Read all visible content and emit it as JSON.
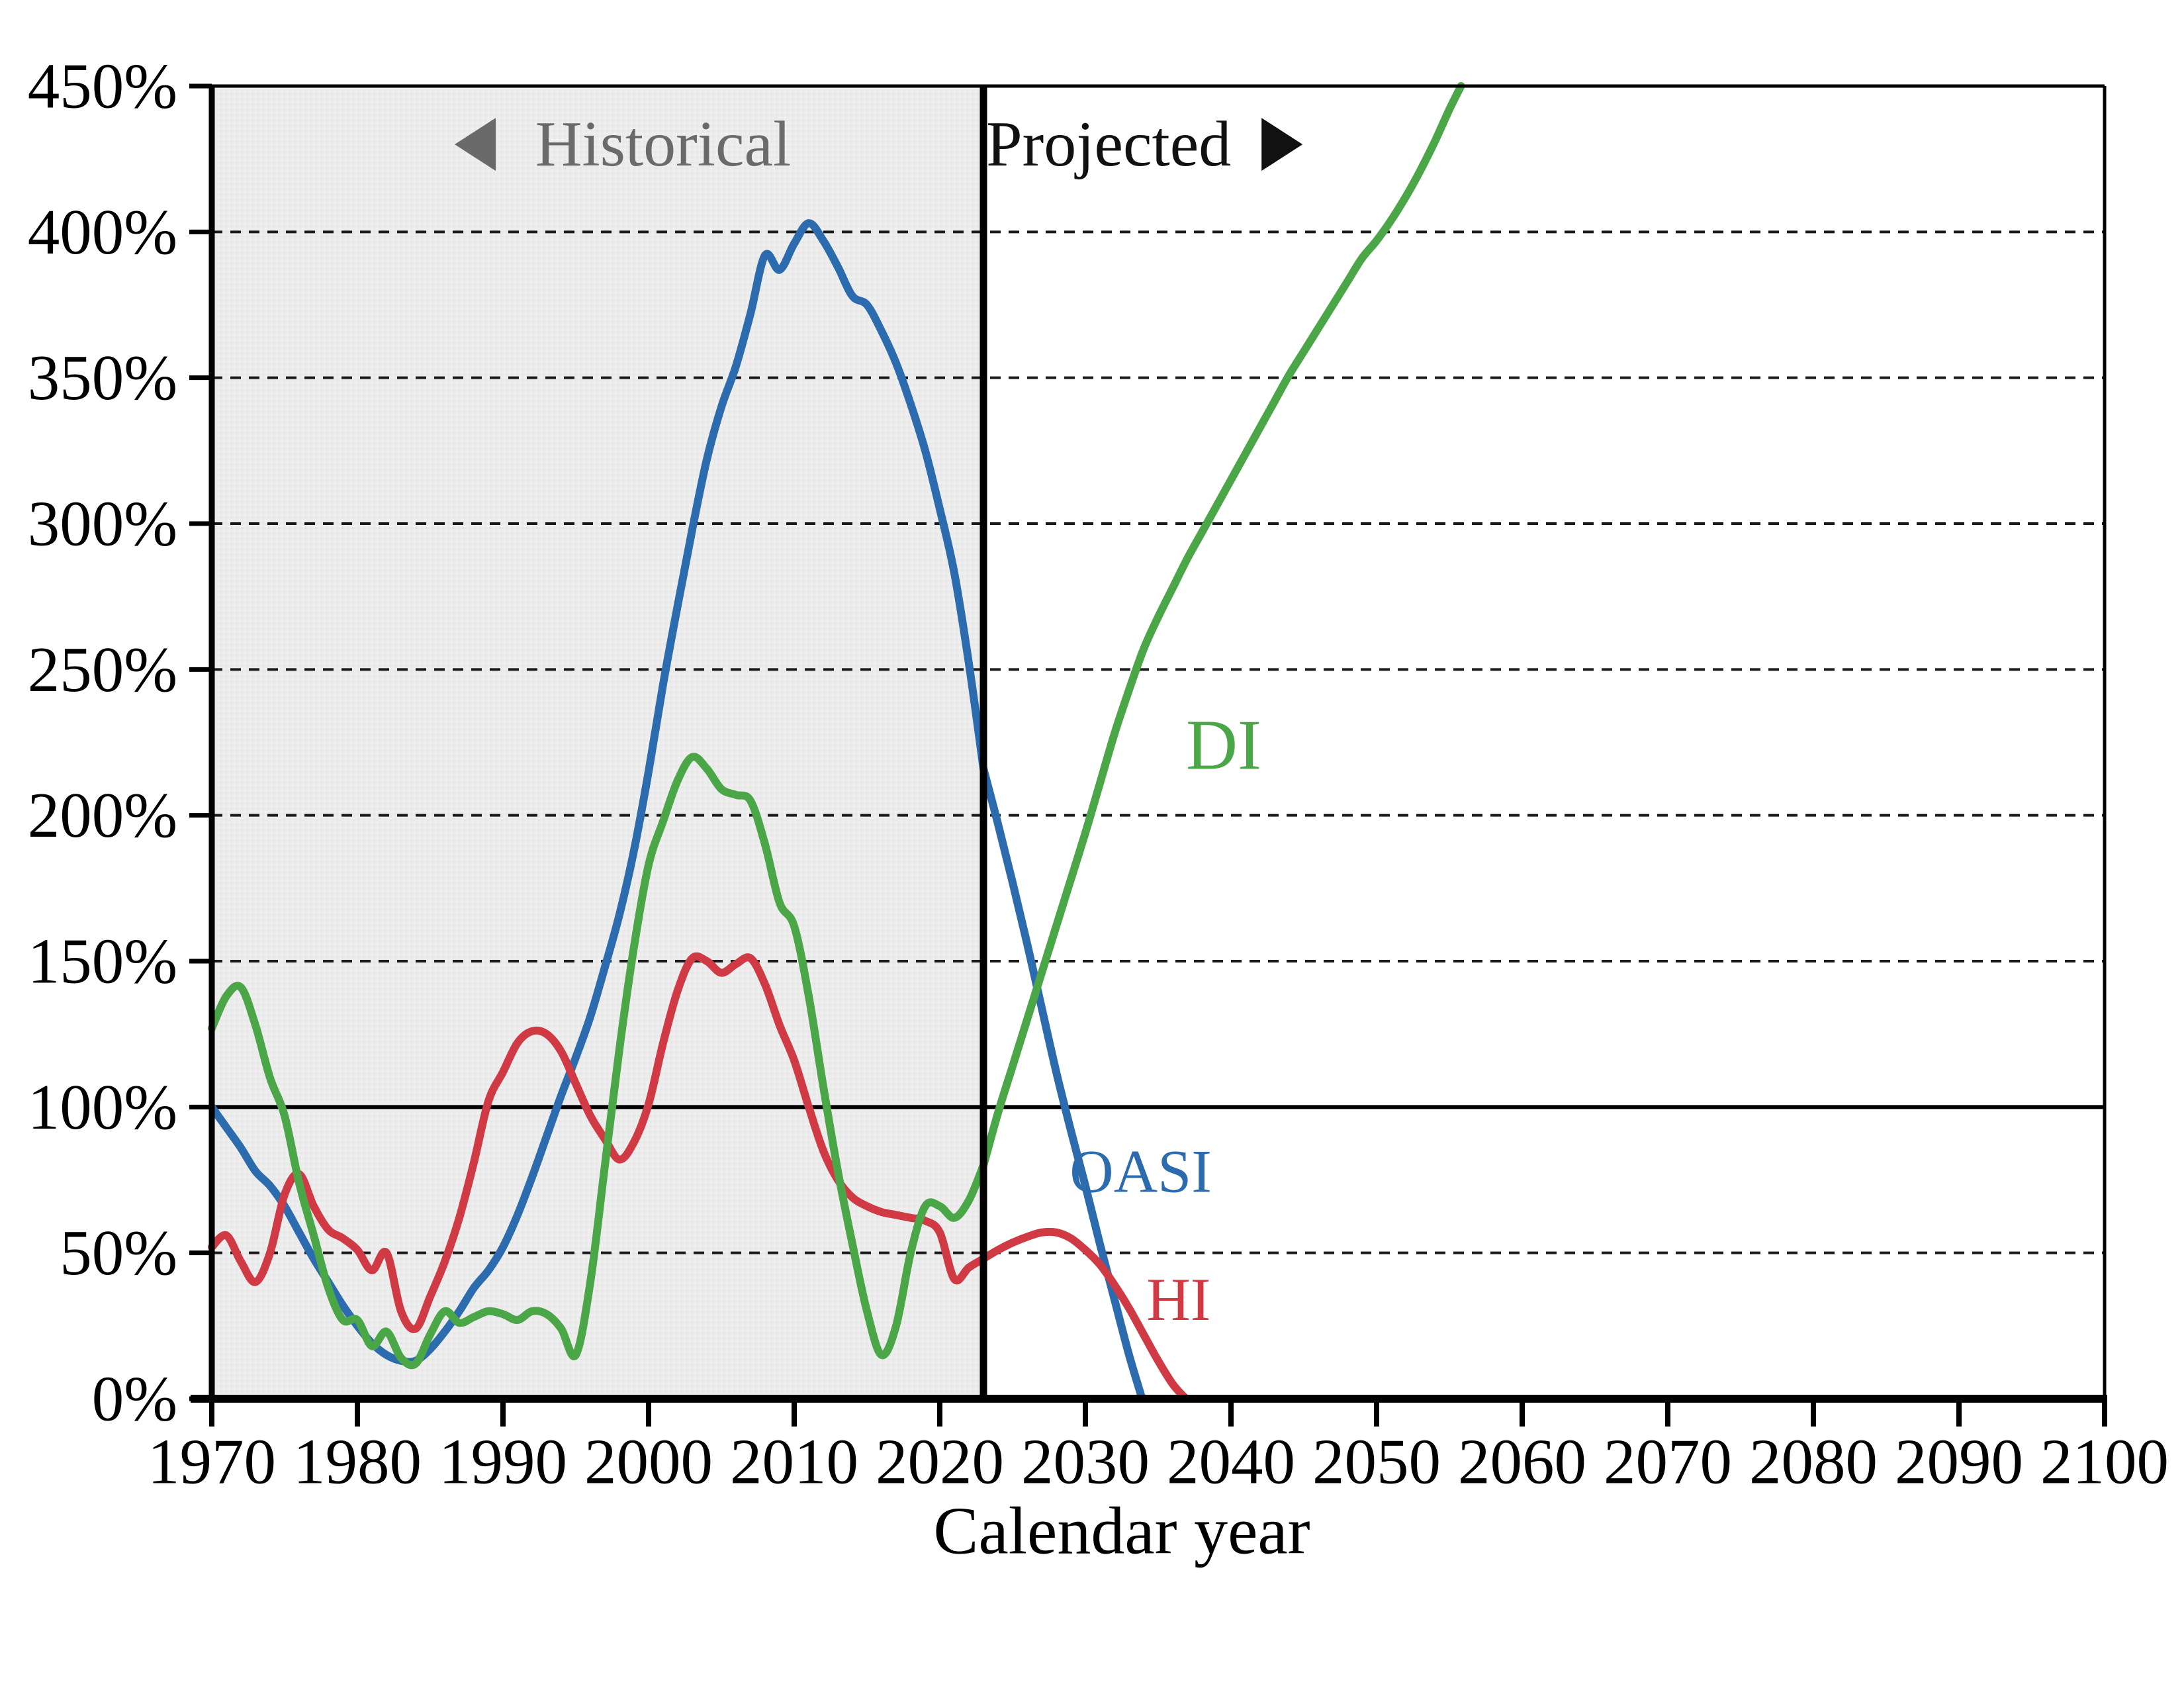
{
  "chart_data": {
    "type": "line",
    "title": "",
    "xlabel": "Calendar year",
    "ylabel": "",
    "x_axis": {
      "min": 1970,
      "max": 2100,
      "tick_interval": 10,
      "tick_labels": [
        "1970",
        "1980",
        "1990",
        "2000",
        "2010",
        "2020",
        "2030",
        "2040",
        "2050",
        "2060",
        "2070",
        "2080",
        "2090",
        "2100"
      ]
    },
    "y_axis": {
      "min": 0,
      "max": 450,
      "tick_interval": 50,
      "tick_labels": [
        "0%",
        "50%",
        "100%",
        "150%",
        "200%",
        "250%",
        "300%",
        "350%",
        "400%",
        "450%"
      ]
    },
    "gridlines": {
      "dashed_at": [
        50,
        150,
        200,
        250,
        300,
        350,
        400
      ],
      "solid_at": [
        100
      ],
      "grid_on": true
    },
    "boundary_year": 2023,
    "regions": {
      "historical": {
        "start": 1970,
        "end": 2023,
        "label": "Historical",
        "arrow": "left",
        "fill": "#ececec",
        "label_color": "#6a6a6a",
        "label_pos": {
          "year": 2001.0,
          "value": 430
        }
      },
      "projected": {
        "start": 2023,
        "end": 2100,
        "label": "Projected",
        "arrow": "right",
        "fill": "#ffffff",
        "label_color": "#111111",
        "label_pos": {
          "year": 2031.6,
          "value": 430
        }
      }
    },
    "legend_position": "on-curve-labels",
    "series": [
      {
        "name": "OASI",
        "color": "#2c6cae",
        "label_pos": {
          "year": 2033.8,
          "value": 78
        },
        "label_size": 92,
        "historical": [
          [
            1970,
            100
          ],
          [
            1971,
            93
          ],
          [
            1972,
            86
          ],
          [
            1973,
            78
          ],
          [
            1974,
            73
          ],
          [
            1975,
            66
          ],
          [
            1976,
            57
          ],
          [
            1977,
            48
          ],
          [
            1978,
            40
          ],
          [
            1979,
            32
          ],
          [
            1980,
            25
          ],
          [
            1981,
            19
          ],
          [
            1982,
            15
          ],
          [
            1983,
            13
          ],
          [
            1984,
            13
          ],
          [
            1985,
            17
          ],
          [
            1986,
            23
          ],
          [
            1987,
            30
          ],
          [
            1988,
            38
          ],
          [
            1989,
            44
          ],
          [
            1990,
            52
          ],
          [
            1991,
            63
          ],
          [
            1992,
            76
          ],
          [
            1993,
            90
          ],
          [
            1994,
            104
          ],
          [
            1995,
            117
          ],
          [
            1996,
            131
          ],
          [
            1997,
            148
          ],
          [
            1998,
            166
          ],
          [
            1999,
            188
          ],
          [
            2000,
            215
          ],
          [
            2001,
            245
          ],
          [
            2002,
            272
          ],
          [
            2003,
            298
          ],
          [
            2004,
            322
          ],
          [
            2005,
            340
          ],
          [
            2006,
            354
          ],
          [
            2007,
            372
          ],
          [
            2008,
            392
          ],
          [
            2009,
            387
          ],
          [
            2010,
            396
          ],
          [
            2011,
            403
          ],
          [
            2012,
            397
          ],
          [
            2013,
            388
          ],
          [
            2014,
            378
          ],
          [
            2015,
            375
          ],
          [
            2016,
            366
          ],
          [
            2017,
            355
          ],
          [
            2018,
            341
          ],
          [
            2019,
            325
          ],
          [
            2020,
            305
          ],
          [
            2021,
            283
          ],
          [
            2022,
            252
          ],
          [
            2023,
            216
          ]
        ],
        "projected": [
          [
            2023,
            216
          ],
          [
            2024,
            197
          ],
          [
            2025,
            177
          ],
          [
            2026,
            156
          ],
          [
            2027,
            134
          ],
          [
            2028,
            112
          ],
          [
            2029,
            92
          ],
          [
            2030,
            73
          ],
          [
            2031,
            53
          ],
          [
            2032,
            34
          ],
          [
            2033,
            15
          ],
          [
            2033.9,
            0
          ]
        ]
      },
      {
        "name": "HI",
        "color": "#cf3a44",
        "label_pos": {
          "year": 2036.4,
          "value": 34
        },
        "label_size": 92,
        "historical": [
          [
            1970,
            52
          ],
          [
            1971,
            56
          ],
          [
            1972,
            47
          ],
          [
            1973,
            40
          ],
          [
            1974,
            50
          ],
          [
            1975,
            70
          ],
          [
            1976,
            77
          ],
          [
            1977,
            66
          ],
          [
            1978,
            58
          ],
          [
            1979,
            55
          ],
          [
            1980,
            51
          ],
          [
            1981,
            44
          ],
          [
            1982,
            50
          ],
          [
            1983,
            30
          ],
          [
            1984,
            24
          ],
          [
            1985,
            35
          ],
          [
            1986,
            47
          ],
          [
            1987,
            62
          ],
          [
            1988,
            81
          ],
          [
            1989,
            102
          ],
          [
            1990,
            112
          ],
          [
            1991,
            122
          ],
          [
            1992,
            126
          ],
          [
            1993,
            125
          ],
          [
            1994,
            119
          ],
          [
            1995,
            108
          ],
          [
            1996,
            97
          ],
          [
            1997,
            89
          ],
          [
            1998,
            82
          ],
          [
            1999,
            88
          ],
          [
            2000,
            101
          ],
          [
            2001,
            122
          ],
          [
            2002,
            140
          ],
          [
            2003,
            151
          ],
          [
            2004,
            150
          ],
          [
            2005,
            146
          ],
          [
            2006,
            149
          ],
          [
            2007,
            151
          ],
          [
            2008,
            142
          ],
          [
            2009,
            128
          ],
          [
            2010,
            116
          ],
          [
            2011,
            100
          ],
          [
            2012,
            85
          ],
          [
            2013,
            75
          ],
          [
            2014,
            69
          ],
          [
            2015,
            66
          ],
          [
            2016,
            64
          ],
          [
            2017,
            63
          ],
          [
            2018,
            62
          ],
          [
            2019,
            61
          ],
          [
            2020,
            57
          ],
          [
            2021,
            41
          ],
          [
            2022,
            45
          ],
          [
            2023,
            48
          ]
        ],
        "projected": [
          [
            2023,
            48
          ],
          [
            2024,
            51
          ],
          [
            2025,
            53.5
          ],
          [
            2026,
            55.5
          ],
          [
            2027,
            57
          ],
          [
            2028,
            57
          ],
          [
            2029,
            55
          ],
          [
            2030,
            51
          ],
          [
            2031,
            46
          ],
          [
            2032,
            39
          ],
          [
            2033,
            31
          ],
          [
            2034,
            22
          ],
          [
            2035,
            13
          ],
          [
            2036,
            5
          ],
          [
            2036.9,
            0
          ]
        ]
      },
      {
        "name": "DI",
        "color": "#4ba648",
        "label_pos": {
          "year": 2039.5,
          "value": 224
        },
        "label_size": 108,
        "historical": [
          [
            1970,
            127
          ],
          [
            1971,
            138
          ],
          [
            1972,
            141
          ],
          [
            1973,
            128
          ],
          [
            1974,
            110
          ],
          [
            1975,
            97
          ],
          [
            1976,
            74
          ],
          [
            1977,
            56
          ],
          [
            1978,
            38
          ],
          [
            1979,
            27
          ],
          [
            1980,
            27
          ],
          [
            1981,
            18
          ],
          [
            1982,
            23
          ],
          [
            1983,
            14
          ],
          [
            1984,
            12
          ],
          [
            1985,
            22
          ],
          [
            1986,
            30
          ],
          [
            1987,
            26
          ],
          [
            1988,
            28
          ],
          [
            1989,
            30
          ],
          [
            1990,
            29
          ],
          [
            1991,
            27
          ],
          [
            1992,
            30
          ],
          [
            1993,
            29
          ],
          [
            1994,
            24
          ],
          [
            1995,
            15
          ],
          [
            1996,
            40
          ],
          [
            1997,
            80
          ],
          [
            1998,
            120
          ],
          [
            1999,
            155
          ],
          [
            2000,
            183
          ],
          [
            2001,
            198
          ],
          [
            2002,
            212
          ],
          [
            2003,
            220
          ],
          [
            2004,
            216
          ],
          [
            2005,
            209
          ],
          [
            2006,
            207
          ],
          [
            2007,
            205
          ],
          [
            2008,
            190
          ],
          [
            2009,
            170
          ],
          [
            2010,
            162
          ],
          [
            2011,
            138
          ],
          [
            2012,
            107
          ],
          [
            2013,
            78
          ],
          [
            2014,
            53
          ],
          [
            2015,
            30
          ],
          [
            2016,
            15
          ],
          [
            2017,
            25
          ],
          [
            2018,
            50
          ],
          [
            2019,
            66
          ],
          [
            2020,
            66
          ],
          [
            2021,
            62
          ],
          [
            2022,
            68
          ],
          [
            2023,
            80
          ]
        ],
        "projected": [
          [
            2023,
            80
          ],
          [
            2024,
            98
          ],
          [
            2025,
            114
          ],
          [
            2026,
            130
          ],
          [
            2027,
            146
          ],
          [
            2028,
            162
          ],
          [
            2029,
            178
          ],
          [
            2030,
            194
          ],
          [
            2031,
            211
          ],
          [
            2032,
            228
          ],
          [
            2033,
            243
          ],
          [
            2034,
            257
          ],
          [
            2035,
            268
          ],
          [
            2036,
            278
          ],
          [
            2037,
            288
          ],
          [
            2038,
            297
          ],
          [
            2039,
            306
          ],
          [
            2040,
            315
          ],
          [
            2041,
            324
          ],
          [
            2042,
            333
          ],
          [
            2043,
            342
          ],
          [
            2044,
            351
          ],
          [
            2045,
            359
          ],
          [
            2046,
            367
          ],
          [
            2047,
            375
          ],
          [
            2048,
            383
          ],
          [
            2049,
            391
          ],
          [
            2050,
            397
          ],
          [
            2051,
            404
          ],
          [
            2052,
            412
          ],
          [
            2053,
            421
          ],
          [
            2054,
            431
          ],
          [
            2055,
            442
          ],
          [
            2055.8,
            450
          ]
        ]
      }
    ]
  }
}
